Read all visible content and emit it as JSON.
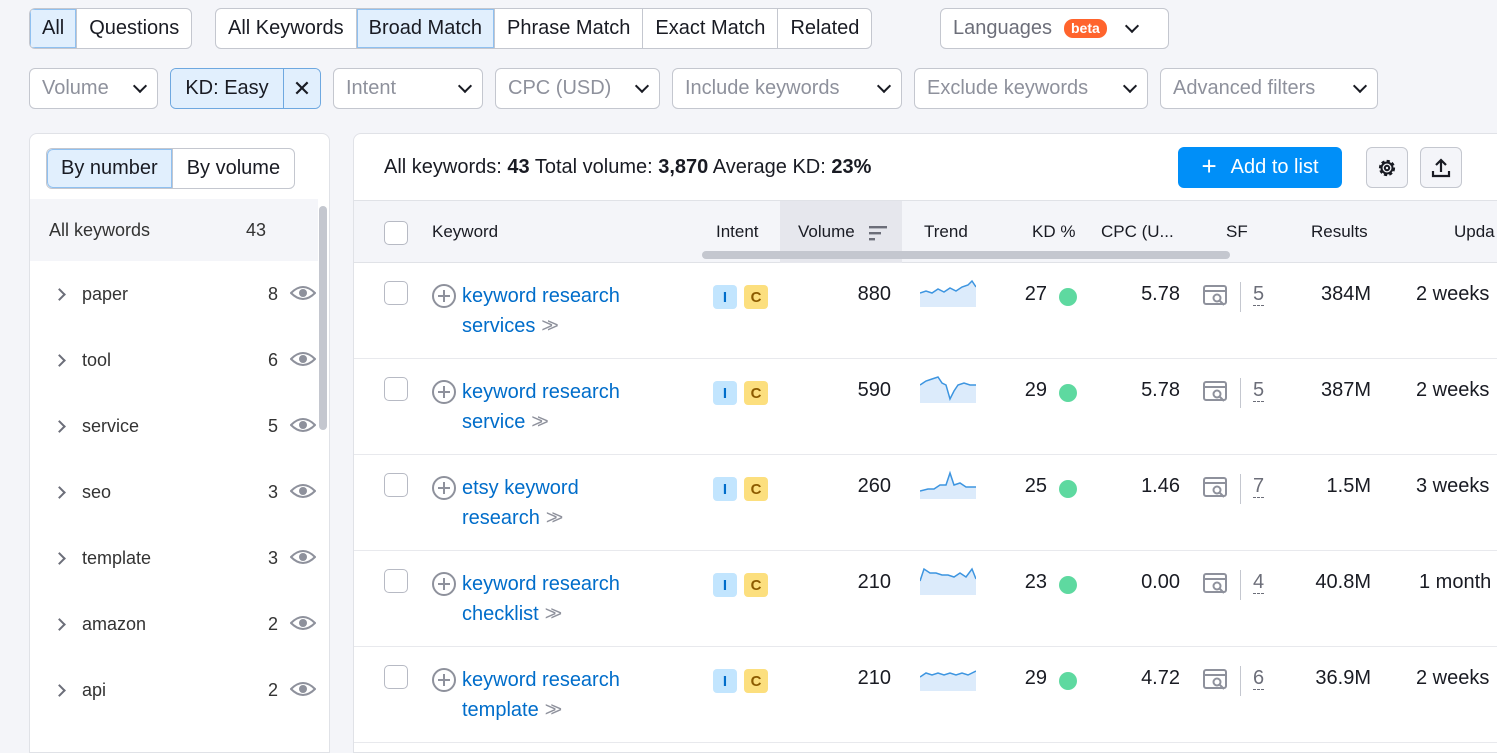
{
  "tabs1": [
    "All",
    "Questions"
  ],
  "tabs2": [
    "All Keywords",
    "Broad Match",
    "Phrase Match",
    "Exact Match",
    "Related"
  ],
  "languages": {
    "label": "Languages",
    "badge": "beta"
  },
  "filters": {
    "volume": "Volume",
    "kd": "KD: Easy",
    "kd_clear": "✕",
    "intent": "Intent",
    "cpc": "CPC (USD)",
    "include": "Include keywords",
    "exclude": "Exclude keywords",
    "advanced": "Advanced filters"
  },
  "sidebar": {
    "toggle": [
      "By number",
      "By volume"
    ],
    "all_label": "All keywords",
    "all_count": "43",
    "groups": [
      {
        "name": "paper",
        "count": "8"
      },
      {
        "name": "tool",
        "count": "6"
      },
      {
        "name": "service",
        "count": "5"
      },
      {
        "name": "seo",
        "count": "3"
      },
      {
        "name": "template",
        "count": "3"
      },
      {
        "name": "amazon",
        "count": "2"
      },
      {
        "name": "api",
        "count": "2"
      }
    ]
  },
  "summary": {
    "all_label": "All keywords:",
    "all_value": "43",
    "vol_label": "Total volume:",
    "vol_value": "3,870",
    "kd_label": "Average KD:",
    "kd_value": "23%"
  },
  "add_to_list": "Add to list",
  "columns": {
    "keyword": "Keyword",
    "intent": "Intent",
    "volume": "Volume",
    "trend": "Trend",
    "kd": "KD %",
    "cpc": "CPC (U...",
    "sf": "SF",
    "results": "Results",
    "updated": "Upda"
  },
  "rows": [
    {
      "kw1": "keyword research",
      "kw2": "services",
      "i1": "I",
      "i2": "C",
      "volume": "880",
      "kd": "27",
      "cpc": "5.78",
      "sf": "5",
      "results": "384M",
      "updated": "2 weeks"
    },
    {
      "kw1": "keyword research",
      "kw2": "service",
      "i1": "I",
      "i2": "C",
      "volume": "590",
      "kd": "29",
      "cpc": "5.78",
      "sf": "5",
      "results": "387M",
      "updated": "2 weeks"
    },
    {
      "kw1": "etsy keyword",
      "kw2": "research",
      "i1": "I",
      "i2": "C",
      "volume": "260",
      "kd": "25",
      "cpc": "1.46",
      "sf": "7",
      "results": "1.5M",
      "updated": "3 weeks"
    },
    {
      "kw1": "keyword research",
      "kw2": "checklist",
      "i1": "I",
      "i2": "C",
      "volume": "210",
      "kd": "23",
      "cpc": "0.00",
      "sf": "4",
      "results": "40.8M",
      "updated": "1 month"
    },
    {
      "kw1": "keyword research",
      "kw2": "template",
      "i1": "I",
      "i2": "C",
      "volume": "210",
      "kd": "29",
      "cpc": "4.72",
      "sf": "6",
      "results": "36.9M",
      "updated": "2 weeks"
    }
  ],
  "colors": {
    "accent": "#008ff8",
    "link": "#006dca",
    "kd_easy": "#5ed9a0",
    "beta": "#ff642d"
  }
}
